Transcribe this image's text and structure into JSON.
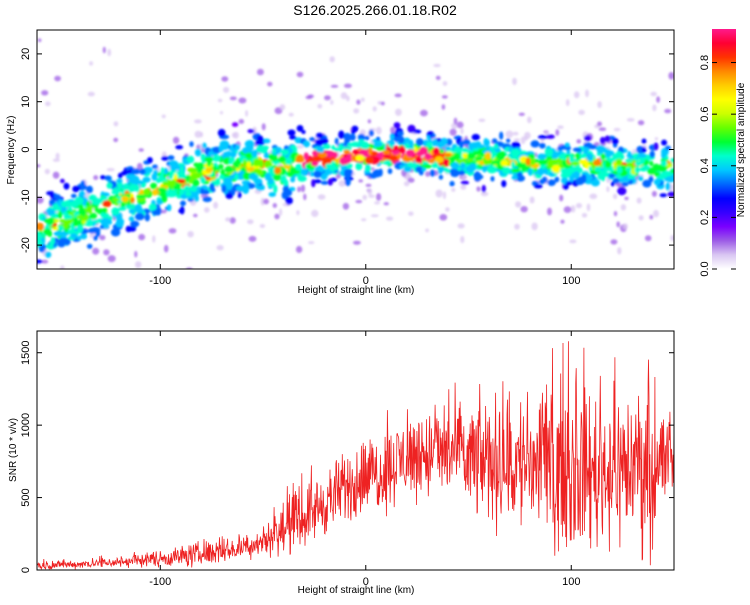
{
  "title": "S126.2025.266.01.18.R02",
  "colors": {
    "snr_line": "#ee2222",
    "background": "#ffffff",
    "axis": "#000000"
  },
  "chart_data": [
    {
      "type": "heatmap",
      "name": "spectrogram",
      "xlabel": "Height of straight line (km)",
      "ylabel": "Frequency (Hz)",
      "xlim": [
        -160,
        150
      ],
      "ylim": [
        -25,
        25
      ],
      "xticks": [
        -100,
        0,
        100
      ],
      "yticks": [
        -20,
        -10,
        0,
        10,
        20
      ],
      "colorbar": {
        "label": "Normalized spectral amplitude",
        "range": [
          0.0,
          0.93
        ],
        "ticks": [
          "0.0",
          "0.2",
          "0.4",
          "0.6",
          "0.8"
        ],
        "tick_values": [
          0.0,
          0.2,
          0.4,
          0.6,
          0.8
        ],
        "colormap": [
          "#ffffff",
          "#d9c6f2",
          "#9c5ce6",
          "#7a00ff",
          "#3600ff",
          "#0000ff",
          "#0066ff",
          "#00c8ff",
          "#00ffcc",
          "#00ff33",
          "#66ff00",
          "#ccff00",
          "#ffff00",
          "#ffcc00",
          "#ff8800",
          "#ff3300",
          "#ff0033",
          "#ff1a8c"
        ]
      },
      "ridge": {
        "x": [
          -160,
          -140,
          -120,
          -100,
          -80,
          -60,
          -40,
          -30,
          -20,
          0,
          20,
          40,
          60,
          80,
          100,
          120,
          150
        ],
        "y": [
          -17,
          -14,
          -11,
          -8,
          -5,
          -3,
          -4,
          -2,
          -2,
          -1,
          -1,
          -2,
          -2,
          -3,
          -3,
          -3,
          -4
        ]
      }
    },
    {
      "type": "line",
      "name": "snr",
      "xlabel": "Height of straight line (km)",
      "ylabel": "SNR (10 * v/v)",
      "xlim": [
        -160,
        150
      ],
      "ylim": [
        0,
        1650
      ],
      "xticks": [
        -100,
        0,
        100
      ],
      "yticks": [
        0,
        500,
        1000,
        1500
      ],
      "envelope": {
        "x": [
          -160,
          -140,
          -120,
          -100,
          -80,
          -70,
          -60,
          -50,
          -40,
          -30,
          -20,
          -10,
          0,
          10,
          20,
          30,
          40,
          50,
          60,
          70,
          80,
          90,
          100,
          110,
          120,
          130,
          140,
          150
        ],
        "mean": [
          30,
          40,
          55,
          80,
          110,
          130,
          150,
          200,
          280,
          370,
          460,
          560,
          640,
          700,
          780,
          800,
          820,
          760,
          760,
          720,
          740,
          700,
          700,
          680,
          700,
          720,
          700,
          800
        ],
        "spread": [
          25,
          25,
          35,
          50,
          80,
          70,
          70,
          90,
          160,
          180,
          200,
          220,
          230,
          250,
          260,
          280,
          300,
          350,
          380,
          420,
          450,
          470,
          500,
          480,
          470,
          480,
          470,
          300
        ],
        "max": 1650
      }
    }
  ]
}
